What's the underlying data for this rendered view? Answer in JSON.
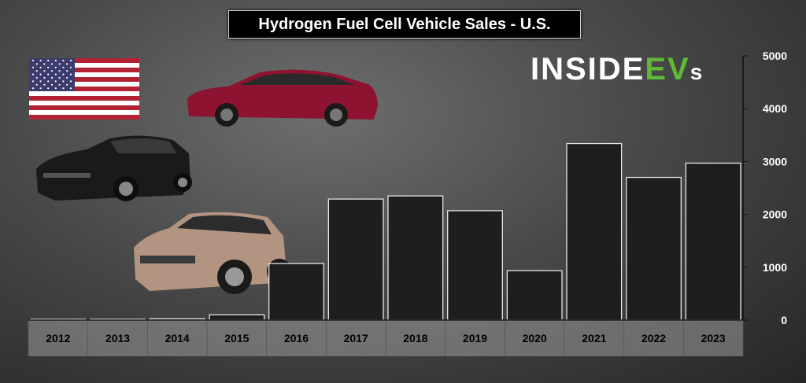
{
  "chart_data": {
    "type": "bar",
    "title": "Hydrogen Fuel Cell Vehicle Sales - U.S.",
    "categories": [
      "2012",
      "2013",
      "2014",
      "2015",
      "2016",
      "2017",
      "2018",
      "2019",
      "2020",
      "2021",
      "2022",
      "2023"
    ],
    "values": [
      2,
      5,
      25,
      100,
      1070,
      2290,
      2350,
      2070,
      935,
      3340,
      2700,
      2970
    ],
    "xlabel": "",
    "ylabel": "",
    "ylim": [
      0,
      5000
    ],
    "yticks": [
      "0",
      "1000",
      "2000",
      "3000",
      "4000",
      "5000"
    ],
    "grid": false,
    "legend": "none",
    "colors": {
      "bar": "#1e1e1e",
      "bar_edge": "#e6e6e6",
      "text": "#000000",
      "tick_text": "#ffffff"
    }
  },
  "branding": {
    "logo_part1": "INSIDE",
    "logo_part2": "EV",
    "logo_part3": "s"
  },
  "images": [
    "us-flag",
    "red-sedan",
    "dark-sedan",
    "bronze-suv"
  ]
}
